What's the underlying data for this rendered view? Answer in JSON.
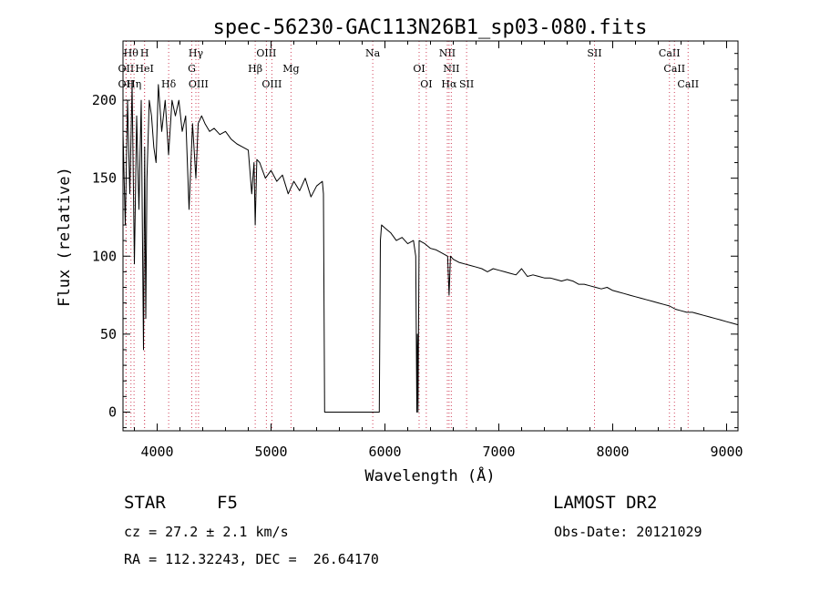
{
  "chart_data": {
    "type": "line",
    "title": "spec-56230-GAC113N26B1_sp03-080.fits",
    "xlabel": "Wavelength (Å)",
    "ylabel": "Flux (relative)",
    "xlim": [
      3700,
      9100
    ],
    "ylim": [
      -12,
      238
    ],
    "xticks": [
      4000,
      5000,
      6000,
      7000,
      8000,
      9000
    ],
    "yticks": [
      0,
      50,
      100,
      150,
      200
    ],
    "grid": false,
    "line_color": "#000000",
    "marker_color": "#d0405a",
    "series": [
      {
        "x": [
          3700,
          3720,
          3740,
          3760,
          3780,
          3800,
          3820,
          3840,
          3860,
          3880,
          3890,
          3900,
          3910,
          3930,
          3950,
          3970,
          3990,
          4010,
          4040,
          4070,
          4100,
          4130,
          4160,
          4190,
          4220,
          4250,
          4280,
          4310,
          4340,
          4360,
          4390,
          4420,
          4460,
          4500,
          4550,
          4600,
          4650,
          4700,
          4750,
          4800,
          4830,
          4850,
          4861,
          4875,
          4900,
          4950,
          5000,
          5050,
          5100,
          5150,
          5200,
          5250,
          5300,
          5350,
          5400,
          5450,
          5460,
          5470,
          5900,
          5950,
          5960,
          5970,
          6000,
          6050,
          6100,
          6150,
          6200,
          6250,
          6270,
          6280,
          6285,
          6290,
          6300,
          6350,
          6400,
          6450,
          6500,
          6550,
          6563,
          6575,
          6600,
          6650,
          6700,
          6750,
          6800,
          6850,
          6900,
          6950,
          7000,
          7050,
          7100,
          7150,
          7200,
          7250,
          7300,
          7350,
          7400,
          7450,
          7500,
          7550,
          7600,
          7650,
          7700,
          7750,
          7800,
          7850,
          7900,
          7950,
          8000,
          8050,
          8100,
          8150,
          8200,
          8250,
          8300,
          8350,
          8400,
          8450,
          8500,
          8550,
          8600,
          8650,
          8700,
          8750,
          8800,
          8850,
          8900,
          8950,
          9000,
          9050,
          9100
        ],
        "values": [
          180,
          120,
          200,
          140,
          210,
          95,
          190,
          130,
          200,
          40,
          170,
          60,
          150,
          200,
          190,
          170,
          160,
          210,
          180,
          200,
          165,
          200,
          190,
          200,
          180,
          190,
          130,
          185,
          150,
          185,
          190,
          185,
          180,
          182,
          178,
          180,
          175,
          172,
          170,
          168,
          140,
          160,
          120,
          162,
          160,
          150,
          155,
          148,
          152,
          140,
          148,
          142,
          150,
          138,
          145,
          148,
          140,
          0,
          0,
          0,
          110,
          120,
          118,
          115,
          110,
          112,
          108,
          110,
          100,
          0,
          50,
          0,
          110,
          108,
          105,
          104,
          102,
          100,
          75,
          100,
          98,
          96,
          95,
          94,
          93,
          92,
          90,
          92,
          91,
          90,
          89,
          88,
          92,
          87,
          88,
          87,
          86,
          86,
          85,
          84,
          85,
          84,
          82,
          82,
          81,
          80,
          79,
          80,
          78,
          77,
          76,
          75,
          74,
          73,
          72,
          71,
          70,
          69,
          68,
          66,
          65,
          64,
          64,
          63,
          62,
          61,
          60,
          59,
          58,
          57,
          56
        ]
      }
    ],
    "line_markers": [
      {
        "x": 3770,
        "label": "Hθ",
        "row": 0
      },
      {
        "x": 3727,
        "label": "OII",
        "row": 1
      },
      {
        "x": 3797,
        "label": "Hη",
        "row": 2
      },
      {
        "x": 3727,
        "label": "OII",
        "row": 2
      },
      {
        "x": 3889,
        "label": "H",
        "row": 0
      },
      {
        "x": 3889,
        "label": "HeI",
        "row": 1
      },
      {
        "x": 4101,
        "label": "Hδ",
        "row": 2
      },
      {
        "x": 4340,
        "label": "Hγ",
        "row": 0
      },
      {
        "x": 4304,
        "label": "G",
        "row": 1
      },
      {
        "x": 4363,
        "label": "OIII",
        "row": 2
      },
      {
        "x": 4959,
        "label": "OIII",
        "row": 0
      },
      {
        "x": 4861,
        "label": "Hβ",
        "row": 1
      },
      {
        "x": 5007,
        "label": "OIII",
        "row": 2
      },
      {
        "x": 5175,
        "label": "Mg",
        "row": 1
      },
      {
        "x": 5893,
        "label": "Na",
        "row": 0
      },
      {
        "x": 6300,
        "label": "OI",
        "row": 1
      },
      {
        "x": 6363,
        "label": "OI",
        "row": 2
      },
      {
        "x": 6548,
        "label": "NII",
        "row": 0
      },
      {
        "x": 6583,
        "label": "NII",
        "row": 1
      },
      {
        "x": 6563,
        "label": "Hα",
        "row": 2
      },
      {
        "x": 6717,
        "label": "SII",
        "row": 2
      },
      {
        "x": 7840,
        "label": "SII",
        "row": 0
      },
      {
        "x": 8498,
        "label": "CaII",
        "row": 0
      },
      {
        "x": 8542,
        "label": "CaII",
        "row": 1
      },
      {
        "x": 8662,
        "label": "CaII",
        "row": 2
      }
    ]
  },
  "info": {
    "object_class": "STAR",
    "subclass": "F5",
    "survey": "LAMOST DR2",
    "cz": "cz = 27.2 ± 2.1 km/s",
    "obs_date": "Obs-Date: 20121029",
    "coords": "RA = 112.32243, DEC =  26.64170"
  }
}
